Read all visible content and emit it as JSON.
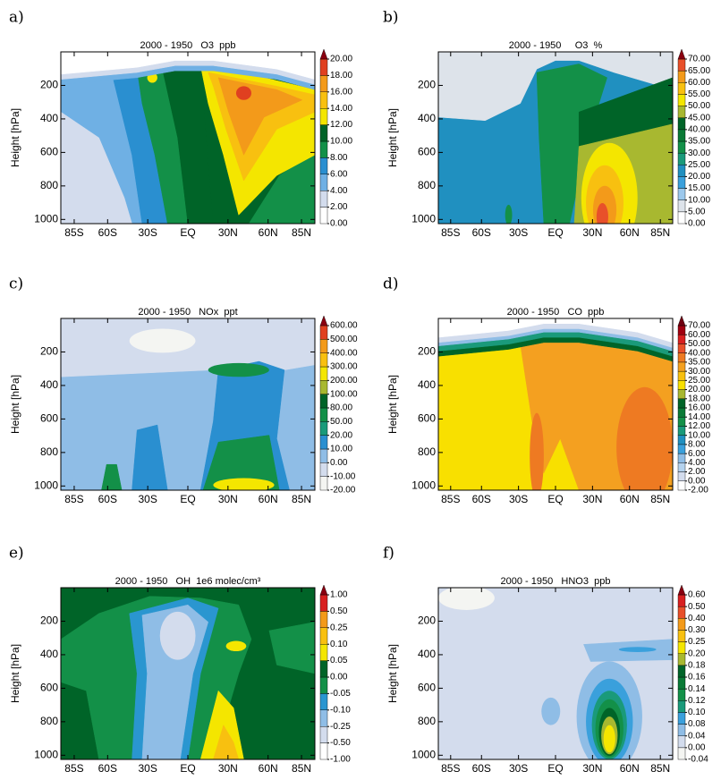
{
  "chart_data": [
    {
      "type": "contour",
      "label": "a)",
      "title": "2000 - 1950   O3  ppb",
      "ylabel": "Height [hPa]",
      "xlim": [
        -95,
        95
      ],
      "xticks": [
        {
          "value": -85,
          "label": "85S"
        },
        {
          "value": -60,
          "label": "60S"
        },
        {
          "value": -30,
          "label": "30S"
        },
        {
          "value": 0,
          "label": "EQ"
        },
        {
          "value": 30,
          "label": "30N"
        },
        {
          "value": 60,
          "label": "60N"
        },
        {
          "value": 85,
          "label": "85N"
        }
      ],
      "ylim": [
        1025,
        0
      ],
      "yticks": [
        200,
        400,
        600,
        800,
        1000
      ],
      "extend": "max",
      "levels": [
        {
          "value": 0,
          "label": "0.00"
        },
        {
          "value": 2,
          "label": "2.00"
        },
        {
          "value": 4,
          "label": "4.00"
        },
        {
          "value": 6,
          "label": "6.00"
        },
        {
          "value": 8,
          "label": "8.00"
        },
        {
          "value": 10,
          "label": "10.00"
        },
        {
          "value": 12,
          "label": "12.00"
        },
        {
          "value": 14,
          "label": "14.00"
        },
        {
          "value": 16,
          "label": "16.00"
        },
        {
          "value": 18,
          "label": "18.00"
        },
        {
          "value": 20,
          "label": "20.00"
        }
      ],
      "colors": [
        "#ffffff",
        "#d3dced",
        "#6fb0e4",
        "#2a8fd0",
        "#139048",
        "#006428",
        "#f4e600",
        "#f8c010",
        "#f39a1a",
        "#e04020",
        "#8a0010"
      ]
    },
    {
      "type": "contour",
      "label": "b)",
      "title": "2000 - 1950     O3  %",
      "ylabel": "Height [hPa]",
      "xlim": [
        -95,
        95
      ],
      "xticks": [
        {
          "value": -85,
          "label": "85S"
        },
        {
          "value": -60,
          "label": "60S"
        },
        {
          "value": -30,
          "label": "30S"
        },
        {
          "value": 0,
          "label": "EQ"
        },
        {
          "value": 30,
          "label": "30N"
        },
        {
          "value": 60,
          "label": "60N"
        },
        {
          "value": 85,
          "label": "85N"
        }
      ],
      "ylim": [
        1025,
        0
      ],
      "yticks": [
        200,
        400,
        600,
        800,
        1000
      ],
      "extend": "max",
      "levels": [
        {
          "value": 0,
          "label": "0.00"
        },
        {
          "value": 5,
          "label": "5.00"
        },
        {
          "value": 10,
          "label": "10.00"
        },
        {
          "value": 15,
          "label": "15.00"
        },
        {
          "value": 20,
          "label": "20.00"
        },
        {
          "value": 25,
          "label": "25.00"
        },
        {
          "value": 30,
          "label": "30.00"
        },
        {
          "value": 35,
          "label": "35.00"
        },
        {
          "value": 40,
          "label": "40.00"
        },
        {
          "value": 45,
          "label": "45.00"
        },
        {
          "value": 50,
          "label": "50.00"
        },
        {
          "value": 55,
          "label": "55.00"
        },
        {
          "value": 60,
          "label": "60.00"
        },
        {
          "value": 65,
          "label": "65.00"
        },
        {
          "value": 70,
          "label": "70.00"
        }
      ],
      "colors": [
        "#ffffff",
        "#dde3ea",
        "#9cc8ec",
        "#3aa0dc",
        "#2090c0",
        "#1a9a7a",
        "#139048",
        "#0a7a36",
        "#006428",
        "#a8b830",
        "#f4e600",
        "#f8c010",
        "#f39a1a",
        "#e8502a",
        "#8a0010"
      ]
    },
    {
      "type": "contour",
      "label": "c)",
      "title": "2000 - 1950   NOx  ppt",
      "ylabel": "Height [hPa]",
      "xlim": [
        -95,
        95
      ],
      "xticks": [
        {
          "value": -85,
          "label": "85S"
        },
        {
          "value": -60,
          "label": "60S"
        },
        {
          "value": -30,
          "label": "30S"
        },
        {
          "value": 0,
          "label": "EQ"
        },
        {
          "value": 30,
          "label": "30N"
        },
        {
          "value": 60,
          "label": "60N"
        },
        {
          "value": 85,
          "label": "85N"
        }
      ],
      "ylim": [
        1025,
        0
      ],
      "yticks": [
        200,
        400,
        600,
        800,
        1000
      ],
      "extend": "max",
      "levels": [
        {
          "value": -20,
          "label": "-20.00"
        },
        {
          "value": -10,
          "label": "-10.00"
        },
        {
          "value": 0,
          "label": "0.00"
        },
        {
          "value": 10,
          "label": "10.00"
        },
        {
          "value": 20,
          "label": "20.00"
        },
        {
          "value": 50,
          "label": "50.00"
        },
        {
          "value": 80,
          "label": "80.00"
        },
        {
          "value": 100,
          "label": "100.00"
        },
        {
          "value": 200,
          "label": "200.00"
        },
        {
          "value": 300,
          "label": "300.00"
        },
        {
          "value": 400,
          "label": "400.00"
        },
        {
          "value": 500,
          "label": "500.00"
        },
        {
          "value": 600,
          "label": "600.00"
        }
      ],
      "colors": [
        "#f4f5f2",
        "#d3dced",
        "#8fbde6",
        "#2a8fd0",
        "#1a9a7a",
        "#139048",
        "#006428",
        "#a8b830",
        "#f4e600",
        "#f8c010",
        "#f39a1a",
        "#e04020",
        "#8a0010"
      ]
    },
    {
      "type": "contour",
      "label": "d)",
      "title": "2000 - 1950   CO  ppb",
      "ylabel": "Height [hPa]",
      "xlim": [
        -95,
        95
      ],
      "xticks": [
        {
          "value": -85,
          "label": "85S"
        },
        {
          "value": -60,
          "label": "60S"
        },
        {
          "value": -30,
          "label": "30S"
        },
        {
          "value": 0,
          "label": "EQ"
        },
        {
          "value": 30,
          "label": "30N"
        },
        {
          "value": 60,
          "label": "60N"
        },
        {
          "value": 85,
          "label": "85N"
        }
      ],
      "ylim": [
        1025,
        0
      ],
      "yticks": [
        200,
        400,
        600,
        800,
        1000
      ],
      "extend": "max",
      "levels": [
        {
          "value": -2,
          "label": "-2.00"
        },
        {
          "value": 0,
          "label": "0.00"
        },
        {
          "value": 2,
          "label": "2.00"
        },
        {
          "value": 4,
          "label": "4.00"
        },
        {
          "value": 6,
          "label": "6.00"
        },
        {
          "value": 8,
          "label": "8.00"
        },
        {
          "value": 10,
          "label": "10.00"
        },
        {
          "value": 12,
          "label": "12.00"
        },
        {
          "value": 14,
          "label": "14.00"
        },
        {
          "value": 16,
          "label": "16.00"
        },
        {
          "value": 18,
          "label": "18.00"
        },
        {
          "value": 20,
          "label": "20.00"
        },
        {
          "value": 25,
          "label": "25.00"
        },
        {
          "value": 30,
          "label": "30.00"
        },
        {
          "value": 35,
          "label": "35.00"
        },
        {
          "value": 40,
          "label": "40.00"
        },
        {
          "value": 50,
          "label": "50.00"
        },
        {
          "value": 60,
          "label": "60.00"
        },
        {
          "value": 70,
          "label": "70.00"
        }
      ],
      "colors": [
        "#ffffff",
        "#d3dced",
        "#b4d2ee",
        "#8fbde6",
        "#3aa0dc",
        "#2090c0",
        "#1a9a7a",
        "#139048",
        "#0a7a36",
        "#006428",
        "#a8b830",
        "#f8e000",
        "#f8c010",
        "#f4a020",
        "#ee7a22",
        "#e8502a",
        "#d82020",
        "#a00010",
        "#700010"
      ]
    },
    {
      "type": "contour",
      "label": "e)",
      "title": "2000 - 1950   OH  1e6 molec/cm³",
      "ylabel": "Height [hPa]",
      "xlim": [
        -95,
        95
      ],
      "xticks": [
        {
          "value": -85,
          "label": "85S"
        },
        {
          "value": -60,
          "label": "60S"
        },
        {
          "value": -30,
          "label": "30S"
        },
        {
          "value": 0,
          "label": "EQ"
        },
        {
          "value": 30,
          "label": "30N"
        },
        {
          "value": 60,
          "label": "60N"
        },
        {
          "value": 85,
          "label": "85N"
        }
      ],
      "ylim": [
        1025,
        0
      ],
      "yticks": [
        200,
        400,
        600,
        800,
        1000
      ],
      "extend": "max",
      "levels": [
        {
          "value": -1,
          "label": "-1.00"
        },
        {
          "value": -0.5,
          "label": "-0.50"
        },
        {
          "value": -0.25,
          "label": "-0.25"
        },
        {
          "value": -0.1,
          "label": "-0.10"
        },
        {
          "value": -0.05,
          "label": "-0.05"
        },
        {
          "value": 0,
          "label": "0.00"
        },
        {
          "value": 0.05,
          "label": "0.05"
        },
        {
          "value": 0.1,
          "label": "0.10"
        },
        {
          "value": 0.25,
          "label": "0.25"
        },
        {
          "value": 0.5,
          "label": "0.50"
        },
        {
          "value": 1,
          "label": "1.00"
        }
      ],
      "colors": [
        "#ffffff",
        "#d3dced",
        "#8fbde6",
        "#2a96d0",
        "#139048",
        "#006428",
        "#f4e600",
        "#f8c010",
        "#f39a1a",
        "#d82020",
        "#8a0010"
      ]
    },
    {
      "type": "contour",
      "label": "f)",
      "title": "2000 - 1950   HNO3  ppb",
      "ylabel": "Height [hPa]",
      "xlim": [
        -95,
        95
      ],
      "xticks": [
        {
          "value": -85,
          "label": "85S"
        },
        {
          "value": -60,
          "label": "60S"
        },
        {
          "value": -30,
          "label": "30S"
        },
        {
          "value": 0,
          "label": "EQ"
        },
        {
          "value": 30,
          "label": "30N"
        },
        {
          "value": 60,
          "label": "60N"
        },
        {
          "value": 85,
          "label": "85N"
        }
      ],
      "ylim": [
        1025,
        0
      ],
      "yticks": [
        200,
        400,
        600,
        800,
        1000
      ],
      "extend": "max",
      "levels": [
        {
          "value": -0.04,
          "label": "-0.04"
        },
        {
          "value": 0,
          "label": "0.00"
        },
        {
          "value": 0.04,
          "label": "0.04"
        },
        {
          "value": 0.08,
          "label": "0.08"
        },
        {
          "value": 0.1,
          "label": "0.10"
        },
        {
          "value": 0.12,
          "label": "0.12"
        },
        {
          "value": 0.14,
          "label": "0.14"
        },
        {
          "value": 0.16,
          "label": "0.16"
        },
        {
          "value": 0.18,
          "label": "0.18"
        },
        {
          "value": 0.2,
          "label": "0.20"
        },
        {
          "value": 0.25,
          "label": "0.25"
        },
        {
          "value": 0.3,
          "label": "0.30"
        },
        {
          "value": 0.4,
          "label": "0.40"
        },
        {
          "value": 0.5,
          "label": "0.50"
        },
        {
          "value": 0.6,
          "label": "0.60"
        }
      ],
      "colors": [
        "#f4f5f2",
        "#d3dced",
        "#8fbde6",
        "#3aa0dc",
        "#1a9a7a",
        "#139048",
        "#0a7a36",
        "#006428",
        "#a8b830",
        "#f4e600",
        "#f8c010",
        "#f39a1a",
        "#e8502a",
        "#d82020",
        "#8a0010"
      ]
    }
  ]
}
